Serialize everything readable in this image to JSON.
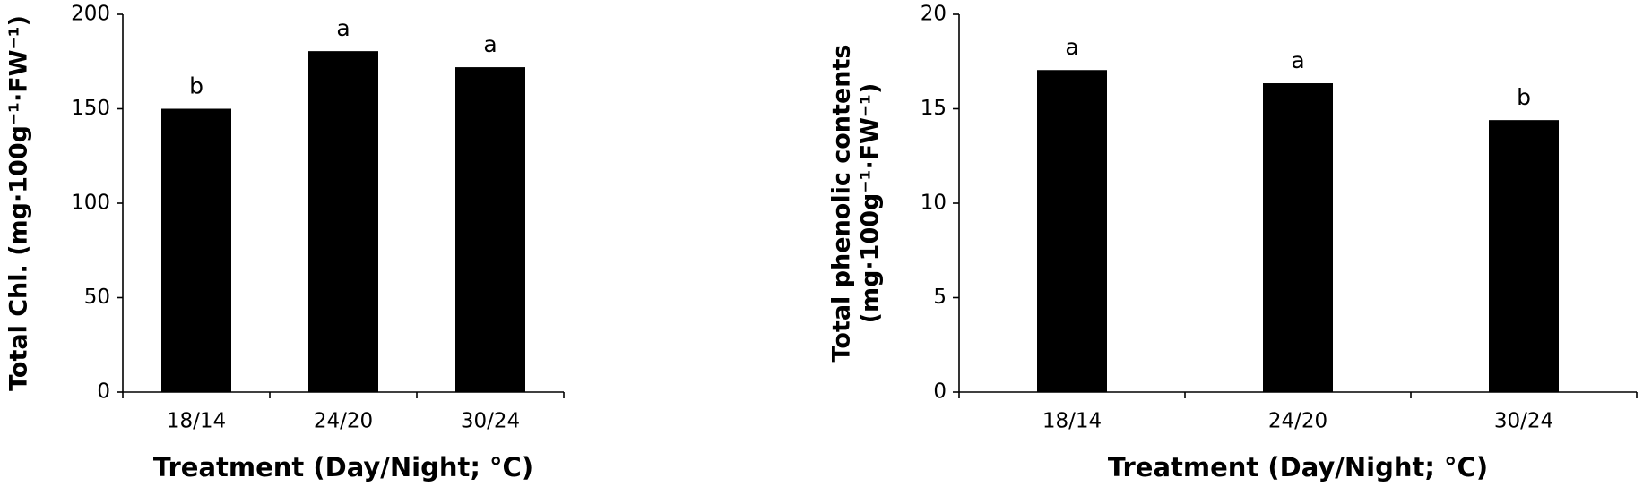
{
  "chart_data": [
    {
      "type": "bar",
      "ylabel": "Total Chl. (mg·100g⁻¹·FW⁻¹)",
      "xlabel": "Treatment (Day/Night; °C)",
      "categories": [
        "18/14",
        "24/20",
        "30/24"
      ],
      "values": [
        150,
        180.5,
        172
      ],
      "letters": [
        "b",
        "a",
        "a"
      ],
      "color": "#000000",
      "ylim": [
        0,
        200
      ],
      "yticks": [
        0,
        50,
        100,
        150,
        200
      ],
      "grid": false
    },
    {
      "type": "bar",
      "ylabel": [
        "Total phenolic contents",
        "(mg·100g⁻¹·FW⁻¹)"
      ],
      "xlabel": "Treatment (Day/Night; °C)",
      "categories": [
        "18/14",
        "24/20",
        "30/24"
      ],
      "values": [
        17.05,
        16.35,
        14.4
      ],
      "letters": [
        "a",
        "a",
        "b"
      ],
      "color": "#000000",
      "ylim": [
        0,
        20
      ],
      "yticks": [
        0,
        5,
        10,
        15,
        20
      ],
      "grid": false
    }
  ]
}
